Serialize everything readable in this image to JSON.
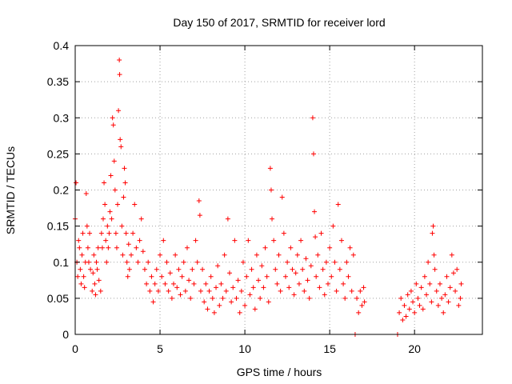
{
  "chart_data": {
    "type": "scatter",
    "title": "Day 150 of 2017, SRMTID for receiver lord",
    "xlabel": "GPS time / hours",
    "ylabel": "SRMTID / TECUs",
    "xlim": [
      0,
      24
    ],
    "ylim": [
      0,
      0.4
    ],
    "xticks": [
      0,
      5,
      10,
      15,
      20
    ],
    "xtick_labels": [
      "0",
      "5",
      "10",
      "15",
      "20"
    ],
    "yticks": [
      0,
      0.05,
      0.1,
      0.15,
      0.2,
      0.25,
      0.3,
      0.35,
      0.4
    ],
    "ytick_labels": [
      "0",
      "0.05",
      "0.1",
      "0.15",
      "0.2",
      "0.25",
      "0.3",
      "0.35",
      "0.4"
    ],
    "grid": true,
    "marker": "+",
    "color": "#ff0000",
    "series": [
      {
        "name": "SRMTID",
        "points": [
          [
            0.0,
            0.16
          ],
          [
            0.05,
            0.21
          ],
          [
            0.1,
            0.1
          ],
          [
            0.15,
            0.08
          ],
          [
            0.2,
            0.13
          ],
          [
            0.25,
            0.12
          ],
          [
            0.3,
            0.09
          ],
          [
            0.35,
            0.07
          ],
          [
            0.4,
            0.11
          ],
          [
            0.45,
            0.14
          ],
          [
            0.5,
            0.08
          ],
          [
            0.55,
            0.065
          ],
          [
            0.6,
            0.1
          ],
          [
            0.65,
            0.195
          ],
          [
            0.7,
            0.15
          ],
          [
            0.75,
            0.12
          ],
          [
            0.8,
            0.1
          ],
          [
            0.85,
            0.14
          ],
          [
            0.9,
            0.09
          ],
          [
            1.0,
            0.06
          ],
          [
            1.05,
            0.085
          ],
          [
            1.1,
            0.11
          ],
          [
            1.15,
            0.07
          ],
          [
            1.2,
            0.055
          ],
          [
            1.25,
            0.1
          ],
          [
            1.3,
            0.09
          ],
          [
            1.35,
            0.12
          ],
          [
            1.4,
            0.075
          ],
          [
            1.5,
            0.06
          ],
          [
            1.55,
            0.14
          ],
          [
            1.6,
            0.12
          ],
          [
            1.65,
            0.16
          ],
          [
            1.7,
            0.21
          ],
          [
            1.75,
            0.18
          ],
          [
            1.8,
            0.13
          ],
          [
            1.85,
            0.1
          ],
          [
            1.9,
            0.15
          ],
          [
            1.95,
            0.12
          ],
          [
            2.0,
            0.14
          ],
          [
            2.05,
            0.17
          ],
          [
            2.1,
            0.22
          ],
          [
            2.15,
            0.16
          ],
          [
            2.2,
            0.3
          ],
          [
            2.25,
            0.29
          ],
          [
            2.3,
            0.24
          ],
          [
            2.35,
            0.2
          ],
          [
            2.4,
            0.14
          ],
          [
            2.45,
            0.12
          ],
          [
            2.5,
            0.18
          ],
          [
            2.55,
            0.31
          ],
          [
            2.6,
            0.38
          ],
          [
            2.62,
            0.36
          ],
          [
            2.65,
            0.27
          ],
          [
            2.7,
            0.26
          ],
          [
            2.75,
            0.15
          ],
          [
            2.8,
            0.11
          ],
          [
            2.85,
            0.19
          ],
          [
            2.9,
            0.23
          ],
          [
            2.95,
            0.21
          ],
          [
            3.0,
            0.14
          ],
          [
            3.05,
            0.1
          ],
          [
            3.1,
            0.08
          ],
          [
            3.15,
            0.125
          ],
          [
            3.2,
            0.09
          ],
          [
            3.3,
            0.11
          ],
          [
            3.4,
            0.14
          ],
          [
            3.5,
            0.18
          ],
          [
            3.6,
            0.12
          ],
          [
            3.7,
            0.1
          ],
          [
            3.8,
            0.13
          ],
          [
            3.9,
            0.16
          ],
          [
            4.0,
            0.115
          ],
          [
            4.1,
            0.09
          ],
          [
            4.2,
            0.07
          ],
          [
            4.3,
            0.1
          ],
          [
            4.4,
            0.06
          ],
          [
            4.5,
            0.08
          ],
          [
            4.6,
            0.045
          ],
          [
            4.7,
            0.07
          ],
          [
            4.8,
            0.09
          ],
          [
            4.9,
            0.06
          ],
          [
            5.0,
            0.11
          ],
          [
            5.1,
            0.08
          ],
          [
            5.2,
            0.13
          ],
          [
            5.3,
            0.07
          ],
          [
            5.4,
            0.1
          ],
          [
            5.5,
            0.06
          ],
          [
            5.6,
            0.085
          ],
          [
            5.7,
            0.05
          ],
          [
            5.8,
            0.07
          ],
          [
            5.9,
            0.11
          ],
          [
            6.0,
            0.065
          ],
          [
            6.1,
            0.09
          ],
          [
            6.2,
            0.055
          ],
          [
            6.3,
            0.08
          ],
          [
            6.4,
            0.1
          ],
          [
            6.5,
            0.06
          ],
          [
            6.6,
            0.12
          ],
          [
            6.7,
            0.075
          ],
          [
            6.8,
            0.05
          ],
          [
            6.9,
            0.09
          ],
          [
            7.0,
            0.07
          ],
          [
            7.1,
            0.13
          ],
          [
            7.2,
            0.1
          ],
          [
            7.3,
            0.185
          ],
          [
            7.35,
            0.165
          ],
          [
            7.4,
            0.06
          ],
          [
            7.5,
            0.09
          ],
          [
            7.6,
            0.045
          ],
          [
            7.7,
            0.07
          ],
          [
            7.8,
            0.035
          ],
          [
            7.9,
            0.06
          ],
          [
            8.0,
            0.08
          ],
          [
            8.1,
            0.05
          ],
          [
            8.2,
            0.03
          ],
          [
            8.3,
            0.065
          ],
          [
            8.4,
            0.095
          ],
          [
            8.5,
            0.04
          ],
          [
            8.6,
            0.07
          ],
          [
            8.7,
            0.05
          ],
          [
            8.8,
            0.11
          ],
          [
            8.9,
            0.06
          ],
          [
            9.0,
            0.16
          ],
          [
            9.1,
            0.085
          ],
          [
            9.2,
            0.045
          ],
          [
            9.3,
            0.065
          ],
          [
            9.4,
            0.13
          ],
          [
            9.5,
            0.05
          ],
          [
            9.6,
            0.075
          ],
          [
            9.7,
            0.03
          ],
          [
            9.8,
            0.06
          ],
          [
            9.9,
            0.1
          ],
          [
            10.0,
            0.04
          ],
          [
            10.1,
            0.08
          ],
          [
            10.2,
            0.13
          ],
          [
            10.3,
            0.055
          ],
          [
            10.4,
            0.09
          ],
          [
            10.5,
            0.065
          ],
          [
            10.6,
            0.035
          ],
          [
            10.7,
            0.11
          ],
          [
            10.8,
            0.075
          ],
          [
            10.9,
            0.05
          ],
          [
            11.0,
            0.095
          ],
          [
            11.1,
            0.065
          ],
          [
            11.2,
            0.12
          ],
          [
            11.3,
            0.08
          ],
          [
            11.4,
            0.045
          ],
          [
            11.5,
            0.23
          ],
          [
            11.55,
            0.2
          ],
          [
            11.6,
            0.16
          ],
          [
            11.7,
            0.13
          ],
          [
            11.8,
            0.09
          ],
          [
            11.9,
            0.07
          ],
          [
            12.0,
            0.11
          ],
          [
            12.1,
            0.06
          ],
          [
            12.2,
            0.19
          ],
          [
            12.3,
            0.14
          ],
          [
            12.4,
            0.08
          ],
          [
            12.5,
            0.1
          ],
          [
            12.6,
            0.065
          ],
          [
            12.7,
            0.12
          ],
          [
            12.8,
            0.09
          ],
          [
            12.9,
            0.055
          ],
          [
            13.0,
            0.085
          ],
          [
            13.1,
            0.11
          ],
          [
            13.2,
            0.07
          ],
          [
            13.3,
            0.13
          ],
          [
            13.4,
            0.09
          ],
          [
            13.5,
            0.06
          ],
          [
            13.6,
            0.105
          ],
          [
            13.7,
            0.075
          ],
          [
            13.8,
            0.05
          ],
          [
            13.9,
            0.095
          ],
          [
            14.0,
            0.3
          ],
          [
            14.05,
            0.25
          ],
          [
            14.1,
            0.17
          ],
          [
            14.15,
            0.135
          ],
          [
            14.2,
            0.08
          ],
          [
            14.3,
            0.11
          ],
          [
            14.4,
            0.065
          ],
          [
            14.5,
            0.14
          ],
          [
            14.6,
            0.09
          ],
          [
            14.7,
            0.055
          ],
          [
            14.8,
            0.1
          ],
          [
            14.9,
            0.07
          ],
          [
            15.0,
            0.12
          ],
          [
            15.1,
            0.08
          ],
          [
            15.2,
            0.15
          ],
          [
            15.3,
            0.1
          ],
          [
            15.4,
            0.06
          ],
          [
            15.5,
            0.18
          ],
          [
            15.6,
            0.09
          ],
          [
            15.7,
            0.13
          ],
          [
            15.8,
            0.07
          ],
          [
            15.9,
            0.05
          ],
          [
            16.0,
            0.1
          ],
          [
            16.1,
            0.08
          ],
          [
            16.2,
            0.12
          ],
          [
            16.3,
            0.06
          ],
          [
            16.4,
            0.11
          ],
          [
            16.5,
            0.0
          ],
          [
            16.6,
            0.05
          ],
          [
            16.7,
            0.03
          ],
          [
            16.8,
            0.06
          ],
          [
            16.9,
            0.04
          ],
          [
            17.0,
            0.065
          ],
          [
            17.05,
            0.045
          ],
          [
            19.0,
            0.0
          ],
          [
            19.1,
            0.03
          ],
          [
            19.2,
            0.05
          ],
          [
            19.3,
            0.02
          ],
          [
            19.4,
            0.04
          ],
          [
            19.5,
            0.025
          ],
          [
            19.6,
            0.055
          ],
          [
            19.7,
            0.035
          ],
          [
            19.8,
            0.06
          ],
          [
            19.9,
            0.045
          ],
          [
            20.0,
            0.03
          ],
          [
            20.1,
            0.07
          ],
          [
            20.2,
            0.05
          ],
          [
            20.3,
            0.04
          ],
          [
            20.4,
            0.065
          ],
          [
            20.5,
            0.035
          ],
          [
            20.6,
            0.08
          ],
          [
            20.7,
            0.055
          ],
          [
            20.8,
            0.1
          ],
          [
            20.9,
            0.07
          ],
          [
            21.0,
            0.045
          ],
          [
            21.05,
            0.14
          ],
          [
            21.1,
            0.15
          ],
          [
            21.15,
            0.11
          ],
          [
            21.2,
            0.09
          ],
          [
            21.3,
            0.06
          ],
          [
            21.4,
            0.04
          ],
          [
            21.5,
            0.07
          ],
          [
            21.6,
            0.05
          ],
          [
            21.7,
            0.03
          ],
          [
            21.8,
            0.055
          ],
          [
            21.9,
            0.08
          ],
          [
            22.0,
            0.045
          ],
          [
            22.1,
            0.065
          ],
          [
            22.2,
            0.11
          ],
          [
            22.3,
            0.085
          ],
          [
            22.4,
            0.06
          ],
          [
            22.5,
            0.09
          ],
          [
            22.6,
            0.04
          ],
          [
            22.7,
            0.05
          ],
          [
            22.75,
            0.07
          ]
        ]
      }
    ]
  }
}
